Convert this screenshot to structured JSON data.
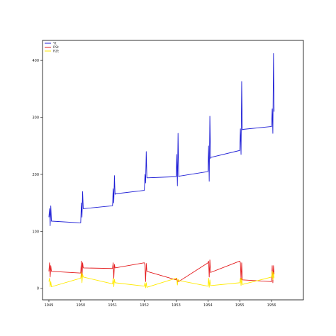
{
  "chart_data": {
    "type": "line",
    "title": "",
    "xlabel": "",
    "ylabel": "",
    "x_ticks": [
      "1949",
      "1950",
      "1951",
      "1952",
      "1953",
      "1954",
      "1955",
      "1956"
    ],
    "x_range": [
      1948.8,
      1957.0
    ],
    "y_ticks": [
      0,
      100,
      200,
      300,
      400
    ],
    "y_range": [
      -20,
      435
    ],
    "grid": false,
    "legend": {
      "placement": "top-left"
    },
    "series": [
      {
        "name": "Yt",
        "color": "#1f1fd6",
        "points": [
          [
            1949.0,
            125
          ],
          [
            1949.02,
            140
          ],
          [
            1949.04,
            110
          ],
          [
            1949.06,
            145
          ],
          [
            1949.08,
            118
          ],
          [
            1949.1,
            118
          ],
          [
            1950.0,
            115
          ],
          [
            1950.02,
            150
          ],
          [
            1950.04,
            125
          ],
          [
            1950.06,
            170
          ],
          [
            1950.08,
            140
          ],
          [
            1950.1,
            140
          ],
          [
            1951.0,
            145
          ],
          [
            1951.02,
            175
          ],
          [
            1951.04,
            150
          ],
          [
            1951.06,
            198
          ],
          [
            1951.08,
            165
          ],
          [
            1951.1,
            166
          ],
          [
            1952.0,
            172
          ],
          [
            1952.02,
            200
          ],
          [
            1952.04,
            185
          ],
          [
            1952.06,
            240
          ],
          [
            1952.08,
            194
          ],
          [
            1952.1,
            194
          ],
          [
            1953.0,
            196
          ],
          [
            1953.02,
            235
          ],
          [
            1953.04,
            180
          ],
          [
            1953.06,
            272
          ],
          [
            1953.08,
            196
          ],
          [
            1953.1,
            197
          ],
          [
            1954.0,
            205
          ],
          [
            1954.02,
            250
          ],
          [
            1954.04,
            188
          ],
          [
            1954.06,
            302
          ],
          [
            1954.08,
            228
          ],
          [
            1954.1,
            230
          ],
          [
            1955.0,
            242
          ],
          [
            1955.02,
            280
          ],
          [
            1955.04,
            235
          ],
          [
            1955.06,
            363
          ],
          [
            1955.08,
            278
          ],
          [
            1955.1,
            279
          ],
          [
            1956.0,
            284
          ],
          [
            1956.02,
            315
          ],
          [
            1956.04,
            272
          ],
          [
            1956.06,
            412
          ],
          [
            1956.08,
            310
          ]
        ]
      },
      {
        "name": "RSt",
        "color": "#e41a1c",
        "points": [
          [
            1949.0,
            30
          ],
          [
            1949.02,
            45
          ],
          [
            1949.04,
            20
          ],
          [
            1949.06,
            40
          ],
          [
            1949.08,
            30
          ],
          [
            1950.0,
            27
          ],
          [
            1950.02,
            48
          ],
          [
            1950.04,
            18
          ],
          [
            1950.06,
            45
          ],
          [
            1950.08,
            36
          ],
          [
            1951.0,
            35
          ],
          [
            1951.02,
            45
          ],
          [
            1951.04,
            18
          ],
          [
            1951.06,
            42
          ],
          [
            1951.08,
            36
          ],
          [
            1952.0,
            45
          ],
          [
            1952.02,
            40
          ],
          [
            1952.04,
            12
          ],
          [
            1952.06,
            44
          ],
          [
            1952.08,
            30
          ],
          [
            1953.0,
            15
          ],
          [
            1953.02,
            18
          ],
          [
            1953.04,
            10
          ],
          [
            1953.06,
            15
          ],
          [
            1953.08,
            12
          ],
          [
            1954.0,
            45
          ],
          [
            1954.02,
            48
          ],
          [
            1954.04,
            20
          ],
          [
            1954.06,
            50
          ],
          [
            1954.08,
            28
          ],
          [
            1955.0,
            48
          ],
          [
            1955.02,
            45
          ],
          [
            1955.04,
            15
          ],
          [
            1955.06,
            45
          ],
          [
            1955.08,
            15
          ],
          [
            1956.0,
            12
          ],
          [
            1956.02,
            40
          ],
          [
            1956.04,
            10
          ],
          [
            1956.06,
            40
          ],
          [
            1956.08,
            25
          ]
        ]
      },
      {
        "name": "RZt",
        "color": "#ffea00",
        "points": [
          [
            1949.0,
            12
          ],
          [
            1949.02,
            18
          ],
          [
            1949.04,
            3
          ],
          [
            1949.06,
            12
          ],
          [
            1949.08,
            3
          ],
          [
            1950.0,
            18
          ],
          [
            1950.02,
            28
          ],
          [
            1950.04,
            10
          ],
          [
            1950.06,
            25
          ],
          [
            1950.08,
            20
          ],
          [
            1951.0,
            8
          ],
          [
            1951.02,
            18
          ],
          [
            1951.04,
            3
          ],
          [
            1951.06,
            16
          ],
          [
            1951.08,
            10
          ],
          [
            1952.0,
            4
          ],
          [
            1952.02,
            10
          ],
          [
            1952.04,
            1
          ],
          [
            1952.06,
            10
          ],
          [
            1952.08,
            2
          ],
          [
            1953.0,
            18
          ],
          [
            1953.02,
            15
          ],
          [
            1953.04,
            6
          ],
          [
            1953.06,
            16
          ],
          [
            1953.08,
            14
          ],
          [
            1954.0,
            4
          ],
          [
            1954.02,
            18
          ],
          [
            1954.04,
            2
          ],
          [
            1954.06,
            15
          ],
          [
            1954.08,
            5
          ],
          [
            1955.0,
            10
          ],
          [
            1955.02,
            18
          ],
          [
            1955.04,
            5
          ],
          [
            1955.06,
            18
          ],
          [
            1955.08,
            7
          ],
          [
            1956.0,
            20
          ],
          [
            1956.02,
            30
          ],
          [
            1956.04,
            15
          ],
          [
            1956.06,
            28
          ],
          [
            1956.08,
            18
          ]
        ]
      }
    ]
  }
}
